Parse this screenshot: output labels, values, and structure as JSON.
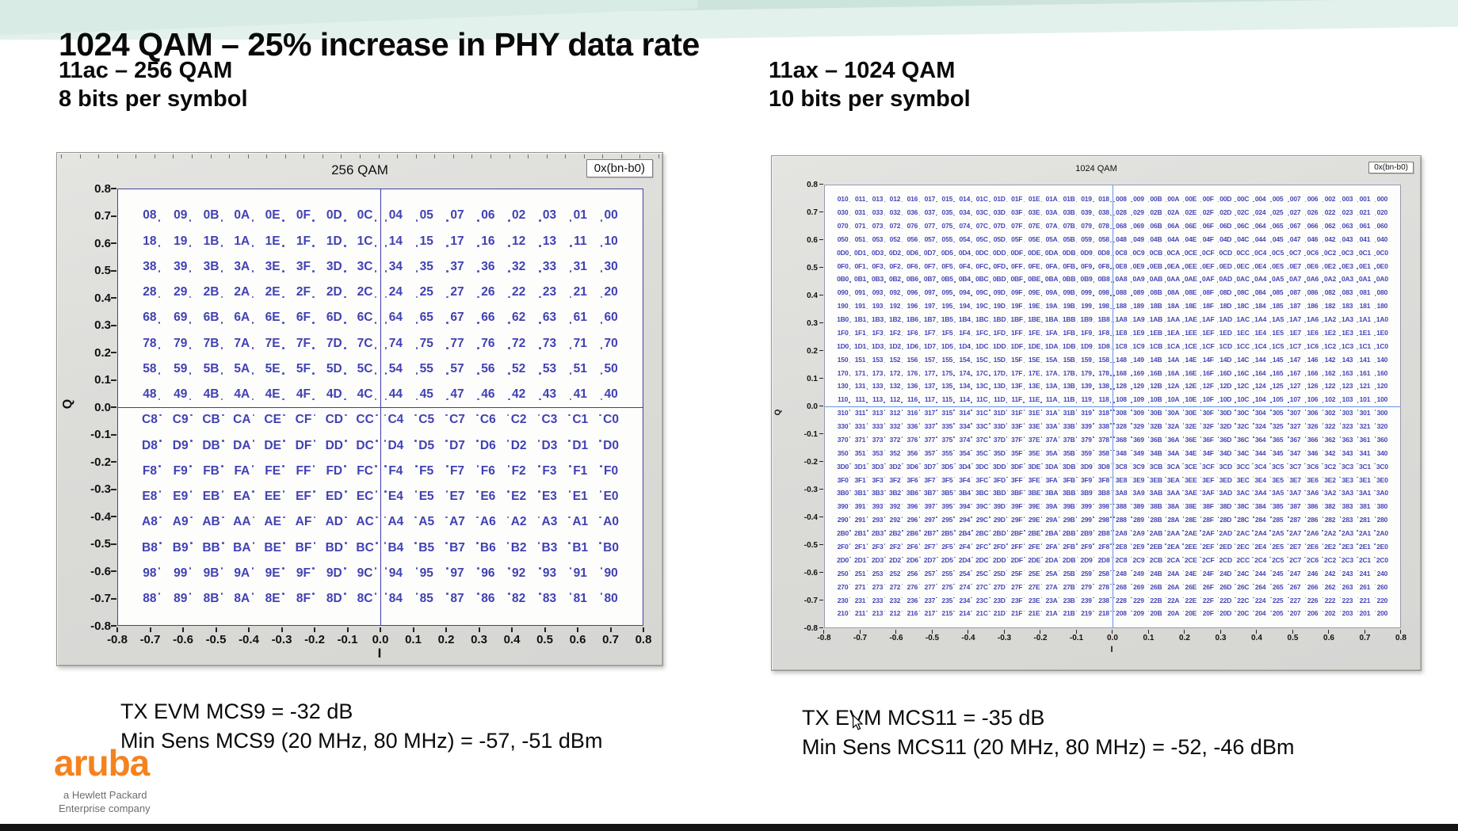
{
  "page": {
    "title": "1024 QAM – 25% increase in PHY data rate",
    "left_subtitle_line1": "11ac – 256 QAM",
    "left_subtitle_line2": "8 bits per symbol",
    "right_subtitle_line1": "11ax – 1024 QAM",
    "right_subtitle_line2": "10 bits per symbol"
  },
  "colors": {
    "band_teal_dark": "#cde4dc",
    "band_teal_light": "#e2f1ec",
    "constellation_label_blue": "#4141b3",
    "left_axis_line": "#3c3cae",
    "right_axis_line": "#6292e8",
    "panel_gray": "#dbdbd8",
    "aruba_orange": "#f5821f",
    "bottom_bar": "#141414"
  },
  "footer": {
    "left_line1": "TX EVM MCS9 = -32 dB",
    "left_line2": "Min Sens MCS9 (20 MHz, 80 MHz) = -57, -51 dBm",
    "right_line1": "TX EVM MCS11 = -35 dB",
    "right_line2": "Min Sens MCS11 (20 MHz, 80 MHz) = -52, -46 dBm",
    "logo_text": "aruba",
    "logo_sub1": "a Hewlett Packard",
    "logo_sub2": "Enterprise company"
  },
  "chart_data": [
    {
      "type": "scatter",
      "title": "256 QAM",
      "overlay_label": "0x(bn-b0)",
      "xlabel": "I",
      "ylabel": "Q",
      "xlim": [
        -0.8,
        0.8
      ],
      "ylim": [
        -0.8,
        0.8
      ],
      "x_tick_labels": [
        "-0.8",
        "-0.7",
        "-0.6",
        "-0.5",
        "-0.4",
        "-0.3",
        "-0.2",
        "-0.1",
        "0.0",
        "0.1",
        "0.2",
        "0.3",
        "0.4",
        "0.5",
        "0.6",
        "0.7",
        "0.8"
      ],
      "y_tick_labels": [
        "0.8",
        "0.7",
        "0.6",
        "0.5",
        "0.4",
        "0.3",
        "0.2",
        "0.1",
        "0.0",
        "-0.1",
        "-0.2",
        "-0.3",
        "-0.4",
        "-0.5",
        "-0.6",
        "-0.7",
        "-0.8"
      ],
      "grid_inset_pct": 3.1,
      "point_levels_min": -0.75,
      "point_levels_step": 0.1,
      "points_per_row": 16,
      "rows": [
        "08 09 0B 0A 0E 0F 0D 0C 04 05 07 06 02 03 01 00",
        "18 19 1B 1A 1E 1F 1D 1C 14 15 17 16 12 13 11 10",
        "38 39 3B 3A 3E 3F 3D 3C 34 35 37 36 32 33 31 30",
        "28 29 2B 2A 2E 2F 2D 2C 24 25 27 26 22 23 21 20",
        "68 69 6B 6A 6E 6F 6D 6C 64 65 67 66 62 63 61 60",
        "78 79 7B 7A 7E 7F 7D 7C 74 75 77 76 72 73 71 70",
        "58 59 5B 5A 5E 5F 5D 5C 54 55 57 56 52 53 51 50",
        "48 49 4B 4A 4E 4F 4D 4C 44 45 47 46 42 43 41 40",
        "C8 C9 CB CA CE CF CD CC C4 C5 C7 C6 C2 C3 C1 C0",
        "D8 D9 DB DA DE DF DD DC D4 D5 D7 D6 D2 D3 D1 D0",
        "F8 F9 FB FA FE FF FD FC F4 F5 F7 F6 F2 F3 F1 F0",
        "E8 E9 EB EA EE EF ED EC E4 E5 E7 E6 E2 E3 E1 E0",
        "A8 A9 AB AA AE AF AD AC A4 A5 A7 A6 A2 A3 A1 A0",
        "B8 B9 BB BA BE BF BD BC B4 B5 B7 B6 B2 B3 B1 B0",
        "98 99 9B 9A 9E 9F 9D 9C 94 95 97 96 92 93 91 90",
        "88 89 8B 8A 8E 8F 8D 8C 84 85 87 86 82 83 81 80"
      ]
    },
    {
      "type": "scatter",
      "title": "1024 QAM",
      "overlay_label": "0x(bn-b0)",
      "xlabel": "I",
      "ylabel": "Q",
      "xlim": [
        -0.8,
        0.8
      ],
      "ylim": [
        -0.8,
        0.8
      ],
      "x_tick_labels": [
        "-0.8",
        "-0.7",
        "-0.6",
        "-0.5",
        "-0.4",
        "-0.3",
        "-0.2",
        "-0.1",
        "0.0",
        "0.1",
        "0.2",
        "0.3",
        "0.4",
        "0.5",
        "0.6",
        "0.7",
        "0.8"
      ],
      "y_tick_labels": [
        "0.8",
        "0.7",
        "0.6",
        "0.5",
        "0.4",
        "0.3",
        "0.2",
        "0.1",
        "0.0",
        "-0.1",
        "-0.2",
        "-0.3",
        "-0.4",
        "-0.5",
        "-0.6",
        "-0.7",
        "-0.8"
      ],
      "grid_inset_pct": 1.6,
      "point_levels_min": -0.775,
      "point_levels_step": 0.05,
      "points_per_row": 32,
      "rows": [
        "010 011 013 012 016 017 015 014 01C 01D 01F 01E 01A 01B 019 018 008 009 00B 00A 00E 00F 00D 00C 004 005 007 006 002 003 001 000",
        "030 031 033 032 036 037 035 034 03C 03D 03F 03E 03A 03B 039 038 028 029 02B 02A 02E 02F 02D 02C 024 025 027 026 022 023 021 020",
        "070 071 073 072 076 077 075 074 07C 07D 07F 07E 07A 07B 079 078 068 069 06B 06A 06E 06F 06D 06C 064 065 067 066 062 063 061 060",
        "050 051 053 052 056 057 055 054 05C 05D 05F 05E 05A 05B 059 058 048 049 04B 04A 04E 04F 04D 04C 044 045 047 046 042 043 041 040",
        "0D0 0D1 0D3 0D2 0D6 0D7 0D5 0D4 0DC 0DD 0DF 0DE 0DA 0DB 0D9 0D8 0C8 0C9 0CB 0CA 0CE 0CF 0CD 0CC 0C4 0C5 0C7 0C6 0C2 0C3 0C1 0C0",
        "0F0 0F1 0F3 0F2 0F6 0F7 0F5 0F4 0FC 0FD 0FF 0FE 0FA 0FB 0F9 0F8 0E8 0E9 0EB 0EA 0EE 0EF 0ED 0EC 0E4 0E5 0E7 0E6 0E2 0E3 0E1 0E0",
        "0B0 0B1 0B3 0B2 0B6 0B7 0B5 0B4 0BC 0BD 0BF 0BE 0BA 0BB 0B9 0B8 0A8 0A9 0AB 0AA 0AE 0AF 0AD 0AC 0A4 0A5 0A7 0A6 0A2 0A3 0A1 0A0",
        "090 091 093 092 096 097 095 094 09C 09D 09F 09E 09A 09B 099 098 088 089 08B 08A 08E 08F 08D 08C 084 085 087 086 082 083 081 080",
        "190 191 193 192 196 197 195 194 19C 19D 19F 19E 19A 19B 199 198 188 189 18B 18A 18E 18F 18D 18C 184 185 187 186 182 183 181 180",
        "1B0 1B1 1B3 1B2 1B6 1B7 1B5 1B4 1BC 1BD 1BF 1BE 1BA 1BB 1B9 1B8 1A8 1A9 1AB 1AA 1AE 1AF 1AD 1AC 1A4 1A5 1A7 1A6 1A2 1A3 1A1 1A0",
        "1F0 1F1 1F3 1F2 1F6 1F7 1F5 1F4 1FC 1FD 1FF 1FE 1FA 1FB 1F9 1F8 1E8 1E9 1EB 1EA 1EE 1EF 1ED 1EC 1E4 1E5 1E7 1E6 1E2 1E3 1E1 1E0",
        "1D0 1D1 1D3 1D2 1D6 1D7 1D5 1D4 1DC 1DD 1DF 1DE 1DA 1DB 1D9 1D8 1C8 1C9 1CB 1CA 1CE 1CF 1CD 1CC 1C4 1C5 1C7 1C6 1C2 1C3 1C1 1C0",
        "150 151 153 152 156 157 155 154 15C 15D 15F 15E 15A 15B 159 158 148 149 14B 14A 14E 14F 14D 14C 144 145 147 146 142 143 141 140",
        "170 171 173 172 176 177 175 174 17C 17D 17F 17E 17A 17B 179 178 168 169 16B 16A 16E 16F 16D 16C 164 165 167 166 162 163 161 160",
        "130 131 133 132 136 137 135 134 13C 13D 13F 13E 13A 13B 139 138 128 129 12B 12A 12E 12F 12D 12C 124 125 127 126 122 123 121 120",
        "110 111 113 112 116 117 115 114 11C 11D 11F 11E 11A 11B 119 118 108 109 10B 10A 10E 10F 10D 10C 104 105 107 106 102 103 101 100",
        "310 311 313 312 316 317 315 314 31C 31D 31F 31E 31A 31B 319 318 308 309 30B 30A 30E 30F 30D 30C 304 305 307 306 302 303 301 300",
        "330 331 333 332 336 337 335 334 33C 33D 33F 33E 33A 33B 339 338 328 329 32B 32A 32E 32F 32D 32C 324 325 327 326 322 323 321 320",
        "370 371 373 372 376 377 375 374 37C 37D 37F 37E 37A 37B 379 378 368 369 36B 36A 36E 36F 36D 36C 364 365 367 366 362 363 361 360",
        "350 351 353 352 356 357 355 354 35C 35D 35F 35E 35A 35B 359 358 348 349 34B 34A 34E 34F 34D 34C 344 345 347 346 342 343 341 340",
        "3D0 3D1 3D3 3D2 3D6 3D7 3D5 3D4 3DC 3DD 3DF 3DE 3DA 3DB 3D9 3D8 3C8 3C9 3CB 3CA 3CE 3CF 3CD 3CC 3C4 3C5 3C7 3C6 3C2 3C3 3C1 3C0",
        "3F0 3F1 3F3 3F2 3F6 3F7 3F5 3F4 3FC 3FD 3FF 3FE 3FA 3FB 3F9 3F8 3E8 3E9 3EB 3EA 3EE 3EF 3ED 3EC 3E4 3E5 3E7 3E6 3E2 3E3 3E1 3E0",
        "3B0 3B1 3B3 3B2 3B6 3B7 3B5 3B4 3BC 3BD 3BF 3BE 3BA 3BB 3B9 3B8 3A8 3A9 3AB 3AA 3AE 3AF 3AD 3AC 3A4 3A5 3A7 3A6 3A2 3A3 3A1 3A0",
        "390 391 393 392 396 397 395 394 39C 39D 39F 39E 39A 39B 399 398 388 389 38B 38A 38E 38F 38D 38C 384 385 387 386 382 383 381 380",
        "290 291 293 292 296 297 295 294 29C 29D 29F 29E 29A 29B 299 298 288 289 28B 28A 28E 28F 28D 28C 284 285 287 286 282 283 281 280",
        "2B0 2B1 2B3 2B2 2B6 2B7 2B5 2B4 2BC 2BD 2BF 2BE 2BA 2BB 2B9 2B8 2A8 2A9 2AB 2AA 2AE 2AF 2AD 2AC 2A4 2A5 2A7 2A6 2A2 2A3 2A1 2A0",
        "2F0 2F1 2F3 2F2 2F6 2F7 2F5 2F4 2FC 2FD 2FF 2FE 2FA 2FB 2F9 2F8 2E8 2E9 2EB 2EA 2EE 2EF 2ED 2EC 2E4 2E5 2E7 2E6 2E2 2E3 2E1 2E0",
        "2D0 2D1 2D3 2D2 2D6 2D7 2D5 2D4 2DC 2DD 2DF 2DE 2DA 2DB 2D9 2D8 2C8 2C9 2CB 2CA 2CE 2CF 2CD 2CC 2C4 2C5 2C7 2C6 2C2 2C3 2C1 2C0",
        "250 251 253 252 256 257 255 254 25C 25D 25F 25E 25A 25B 259 258 248 249 24B 24A 24E 24F 24D 24C 244 245 247 246 242 243 241 240",
        "270 271 273 272 276 277 275 274 27C 27D 27F 27E 27A 27B 279 278 268 269 26B 26A 26E 26F 26D 26C 264 265 267 266 262 263 261 260",
        "230 231 233 232 236 237 235 234 23C 23D 23F 23E 23A 23B 239 238 228 229 22B 22A 22E 22F 22D 22C 224 225 227 226 222 223 221 220",
        "210 211 213 212 216 217 215 214 21C 21D 21F 21E 21A 21B 219 218 208 209 20B 20A 20E 20F 20D 20C 204 205 207 206 202 203 201 200"
      ]
    }
  ]
}
